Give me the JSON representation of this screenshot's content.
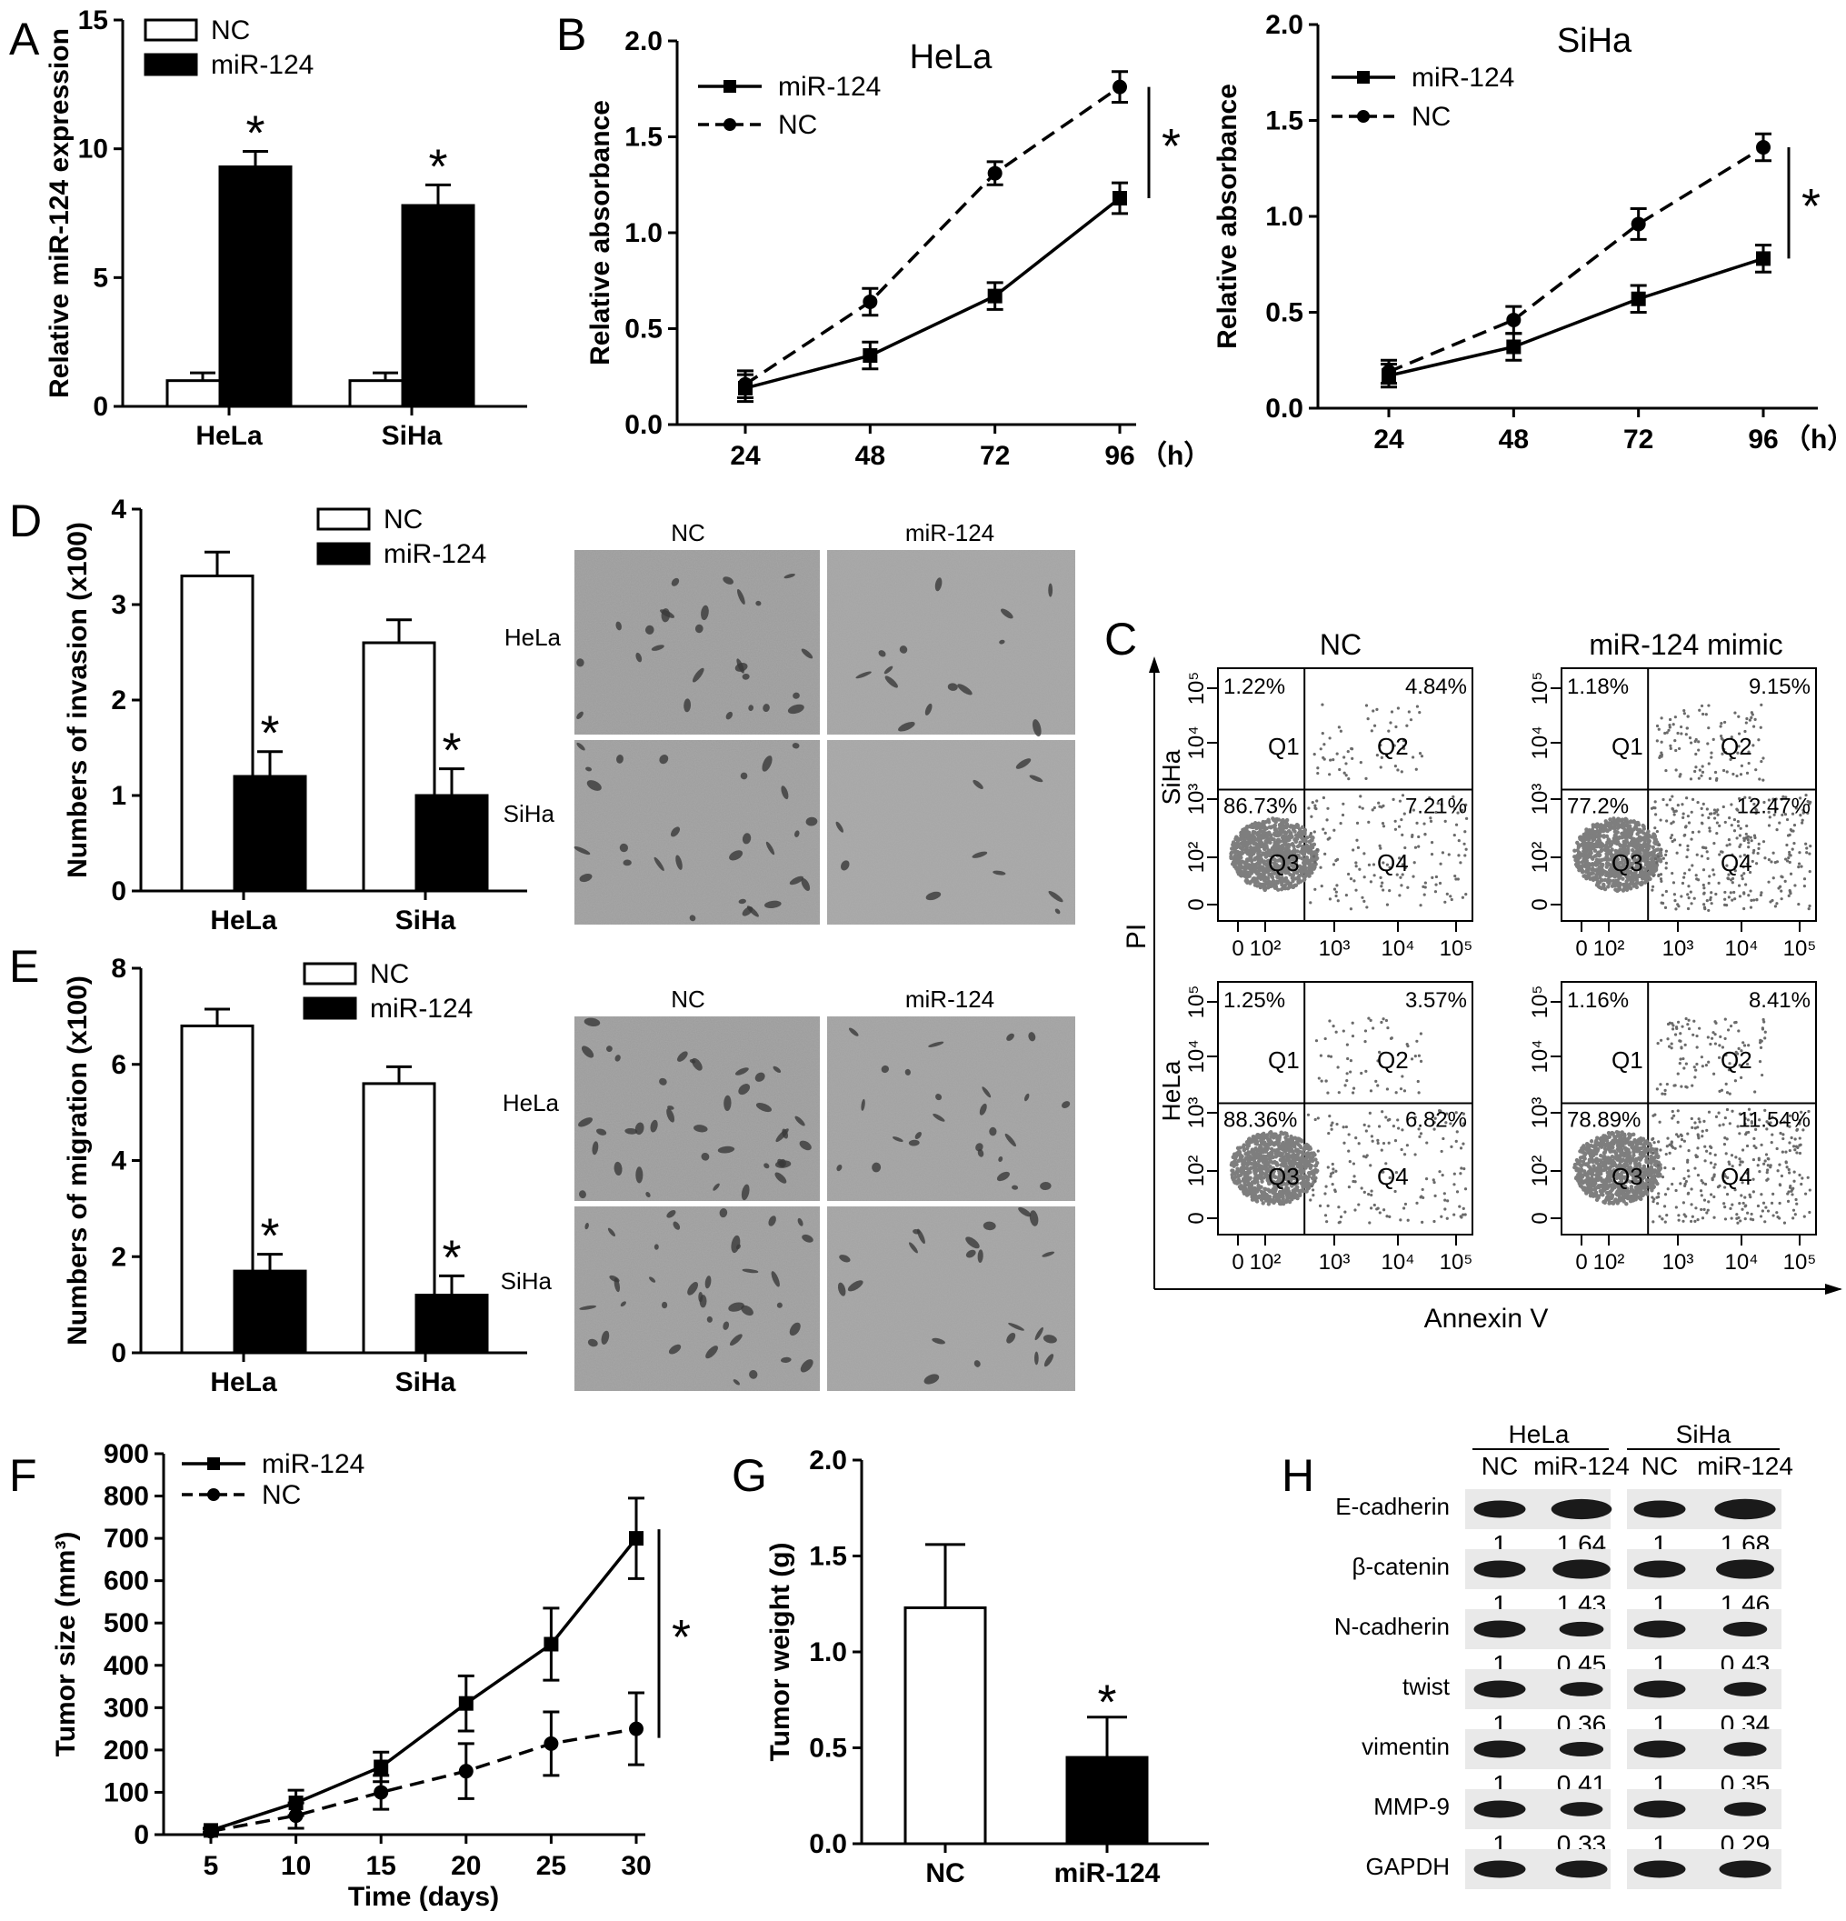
{
  "panels": {
    "A": "A",
    "B": "B",
    "C": "C",
    "D": "D",
    "E": "E",
    "F": "F",
    "G": "G",
    "H": "H"
  },
  "colors": {
    "black": "#000000",
    "white": "#ffffff",
    "micro": "#8f8f8f",
    "dots": "#6a6a6a"
  },
  "chart_data": [
    {
      "id": "A",
      "type": "bar",
      "ylabel": "Relative miR-124 expression",
      "ylim": [
        0,
        15
      ],
      "yticks": [
        0,
        5,
        10,
        15
      ],
      "categories": [
        "HeLa",
        "SiHa"
      ],
      "series": [
        {
          "name": "NC",
          "values": [
            1.0,
            1.0
          ],
          "errors": [
            0.3,
            0.3
          ]
        },
        {
          "name": "miR-124",
          "values": [
            9.3,
            7.8
          ],
          "errors": [
            0.6,
            0.8
          ]
        }
      ],
      "significance": [
        "*",
        "*"
      ],
      "legend": "top-left"
    },
    {
      "id": "B1",
      "type": "line",
      "title": "HeLa",
      "ylabel": "Relative absorbance",
      "x": [
        24,
        48,
        72,
        96
      ],
      "xunit": "（h）",
      "ylim": [
        0,
        2.0
      ],
      "yticks": [
        "0.0",
        "0.5",
        "1.0",
        "1.5",
        "2.0"
      ],
      "series": [
        {
          "name": "miR-124",
          "values": [
            0.19,
            0.36,
            0.67,
            1.18
          ],
          "errors": [
            0.07,
            0.07,
            0.07,
            0.08
          ],
          "style": "solid-square"
        },
        {
          "name": "NC",
          "values": [
            0.21,
            0.64,
            1.31,
            1.76
          ],
          "errors": [
            0.07,
            0.07,
            0.06,
            0.08
          ],
          "style": "dashed-circle"
        }
      ],
      "significance": "*"
    },
    {
      "id": "B2",
      "type": "line",
      "title": "SiHa",
      "ylabel": "Relative absorbance",
      "x": [
        24,
        48,
        72,
        96
      ],
      "xunit": "（h）",
      "ylim": [
        0,
        2.0
      ],
      "yticks": [
        "0.0",
        "0.5",
        "1.0",
        "1.5",
        "2.0"
      ],
      "series": [
        {
          "name": "miR-124",
          "values": [
            0.17,
            0.32,
            0.57,
            0.78
          ],
          "errors": [
            0.06,
            0.07,
            0.07,
            0.07
          ],
          "style": "solid-square"
        },
        {
          "name": "NC",
          "values": [
            0.19,
            0.46,
            0.96,
            1.36
          ],
          "errors": [
            0.06,
            0.07,
            0.08,
            0.07
          ],
          "style": "dashed-circle"
        }
      ],
      "significance": "*"
    },
    {
      "id": "D",
      "type": "bar",
      "ylabel": "Numbers of invasion (x100)",
      "ylim": [
        0,
        4
      ],
      "yticks": [
        0,
        1,
        2,
        3,
        4
      ],
      "categories": [
        "HeLa",
        "SiHa"
      ],
      "series": [
        {
          "name": "NC",
          "values": [
            3.3,
            2.6
          ],
          "errors": [
            0.25,
            0.24
          ]
        },
        {
          "name": "miR-124",
          "values": [
            1.2,
            1.0
          ],
          "errors": [
            0.26,
            0.28
          ]
        }
      ],
      "significance": [
        "*",
        "*"
      ],
      "legend": "top-center"
    },
    {
      "id": "E",
      "type": "bar",
      "ylabel": "Numbers of migration (x100)",
      "ylim": [
        0,
        8
      ],
      "yticks": [
        0,
        2,
        4,
        6,
        8
      ],
      "categories": [
        "HeLa",
        "SiHa"
      ],
      "series": [
        {
          "name": "NC",
          "values": [
            6.8,
            5.6
          ],
          "errors": [
            0.35,
            0.35
          ]
        },
        {
          "name": "miR-124",
          "values": [
            1.7,
            1.2
          ],
          "errors": [
            0.35,
            0.4
          ]
        }
      ],
      "significance": [
        "*",
        "*"
      ],
      "legend": "top-center"
    },
    {
      "id": "F",
      "type": "line",
      "xlabel": "Time (days)",
      "ylabel": "Tumor size (mm³)",
      "x": [
        5,
        10,
        15,
        20,
        25,
        30
      ],
      "ylim": [
        0,
        900
      ],
      "yticks": [
        0,
        100,
        200,
        300,
        400,
        500,
        600,
        700,
        800,
        900
      ],
      "series": [
        {
          "name": "miR-124",
          "values": [
            10,
            75,
            160,
            310,
            450,
            700
          ],
          "errors": [
            5,
            30,
            35,
            65,
            85,
            95
          ],
          "style": "solid-square"
        },
        {
          "name": "NC",
          "values": [
            8,
            45,
            100,
            150,
            215,
            250
          ],
          "errors": [
            5,
            30,
            40,
            65,
            75,
            85
          ],
          "style": "dashed-circle"
        }
      ],
      "significance": "*"
    },
    {
      "id": "G",
      "type": "bar",
      "ylabel": "Tumor weight (g)",
      "ylim": [
        0,
        2.0
      ],
      "yticks": [
        "0.0",
        "0.5",
        "1.0",
        "1.5",
        "2.0"
      ],
      "categories": [
        "NC",
        "miR-124"
      ],
      "values": [
        1.23,
        0.45
      ],
      "errors": [
        0.33,
        0.21
      ],
      "fills": [
        "#ffffff",
        "#000000"
      ],
      "significance": [
        "",
        "*"
      ]
    }
  ],
  "images": {
    "invasion": {
      "cols": [
        "NC",
        "miR-124"
      ],
      "rows": [
        "HeLa",
        "SiHa"
      ]
    },
    "migration": {
      "cols": [
        "NC",
        "miR-124"
      ],
      "rows": [
        "HeLa",
        "SiHa"
      ]
    }
  },
  "flow": {
    "cols": [
      "NC",
      "miR-124 mimic"
    ],
    "rows": [
      "SiHa",
      "HeLa"
    ],
    "ylabel": "PI",
    "xlabel": "Annexin V",
    "quadrants": [
      "Q1",
      "Q2",
      "Q3",
      "Q4"
    ],
    "xticks": [
      "0",
      "10²",
      "10³",
      "10⁴",
      "10⁵"
    ],
    "yticks": [
      "0",
      "10²",
      "10³",
      "10⁴",
      "10⁵"
    ],
    "plots": [
      {
        "q1": "1.22%",
        "q2": "4.84%",
        "q3": "86.73%",
        "q4": "7.21%"
      },
      {
        "q1": "1.18%",
        "q2": "9.15%",
        "q3": "77.2%",
        "q4": "12.47%"
      },
      {
        "q1": "1.25%",
        "q2": "3.57%",
        "q3": "88.36%",
        "q4": "6.82%"
      },
      {
        "q1": "1.16%",
        "q2": "8.41%",
        "q3": "78.89%",
        "q4": "11.54%"
      }
    ]
  },
  "western": {
    "groups": [
      "HeLa",
      "SiHa"
    ],
    "lanes": [
      "NC",
      "miR-124",
      "NC",
      "miR-124"
    ],
    "proteins": [
      {
        "name": "E-cadherin",
        "values": [
          "1",
          "1.64",
          "1",
          "1.68"
        ]
      },
      {
        "name": "β-catenin",
        "values": [
          "1",
          "1.43",
          "1",
          "1.46"
        ]
      },
      {
        "name": "N-cadherin",
        "values": [
          "1",
          "0.45",
          "1",
          "0.43"
        ]
      },
      {
        "name": "twist",
        "values": [
          "1",
          "0.36",
          "1",
          "0.34"
        ]
      },
      {
        "name": "vimentin",
        "values": [
          "1",
          "0.41",
          "1",
          "0.35"
        ]
      },
      {
        "name": "MMP-9",
        "values": [
          "1",
          "0.33",
          "1",
          "0.29"
        ]
      },
      {
        "name": "GAPDH",
        "values": []
      }
    ]
  }
}
